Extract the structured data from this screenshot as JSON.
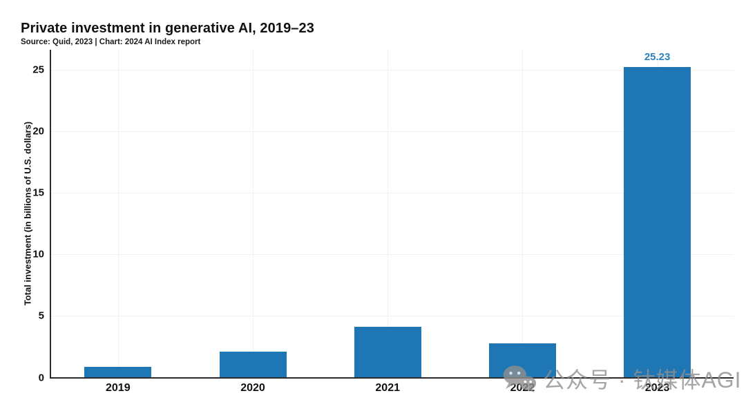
{
  "header": {
    "title": "Private investment in generative AI, 2019–23",
    "subtitle": "Source: Quid, 2023 | Chart: 2024 AI Index report"
  },
  "chart_data": {
    "type": "bar",
    "title": "Private investment in generative AI, 2019–23",
    "subtitle": "Source: Quid, 2023 | Chart: 2024 AI Index report",
    "categories": [
      "2019",
      "2020",
      "2021",
      "2022",
      "2023"
    ],
    "values": [
      0.85,
      2.1,
      4.15,
      2.8,
      25.23
    ],
    "data_labels": [
      null,
      null,
      null,
      null,
      "25.23"
    ],
    "xlabel": "",
    "ylabel": "Total investment (in billions of U.S. dollars)",
    "ylim": [
      0,
      26.5
    ],
    "yticks": [
      0,
      5,
      10,
      15,
      20,
      25
    ],
    "grid": true,
    "legend": "none",
    "bar_color": "#1f76b4",
    "value_label_color": "#2c82c0"
  },
  "watermark": {
    "icon": "wechat-icon",
    "text": "公众号 · 钛媒体AGI",
    "color": "#8f8f8f"
  }
}
